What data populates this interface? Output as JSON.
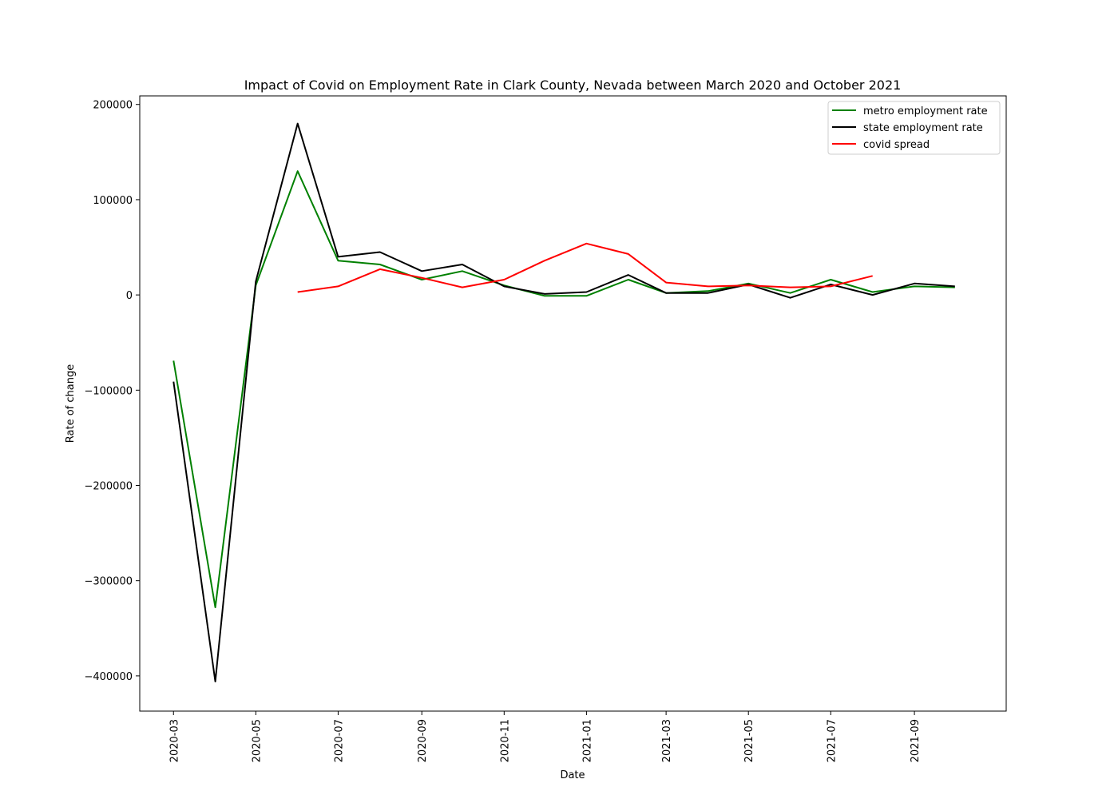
{
  "chart_data": {
    "type": "line",
    "title": "Impact of Covid on Employment Rate in Clark County, Nevada between March 2020 and October 2021",
    "xlabel": "Date",
    "ylabel": "Rate of change",
    "ylim": [
      -437000,
      209000
    ],
    "xlim": [
      "2020-02-05",
      "2021-11-08"
    ],
    "x_ticks": [
      "2020-03",
      "2020-05",
      "2020-07",
      "2020-09",
      "2020-11",
      "2021-01",
      "2021-03",
      "2021-05",
      "2021-07",
      "2021-09"
    ],
    "y_ticks": [
      {
        "value": 200000,
        "label": "200000"
      },
      {
        "value": 100000,
        "label": "100000"
      },
      {
        "value": 0,
        "label": "0"
      },
      {
        "value": -100000,
        "label": "−100000"
      },
      {
        "value": -200000,
        "label": "−200000"
      },
      {
        "value": -300000,
        "label": "−300000"
      },
      {
        "value": -400000,
        "label": "−400000"
      }
    ],
    "grid": false,
    "legend_position": "top-right",
    "series": [
      {
        "name": "metro employment rate",
        "color": "#008000",
        "x": [
          "2020-03-01",
          "2020-04-01",
          "2020-05-01",
          "2020-06-01",
          "2020-07-01",
          "2020-08-01",
          "2020-09-01",
          "2020-10-01",
          "2020-11-01",
          "2020-12-01",
          "2021-01-01",
          "2021-02-01",
          "2021-03-01",
          "2021-04-01",
          "2021-05-01",
          "2021-06-01",
          "2021-07-01",
          "2021-08-01",
          "2021-09-01",
          "2021-10-01"
        ],
        "y": [
          -69000,
          -328000,
          10000,
          130000,
          36000,
          32000,
          16000,
          25000,
          10000,
          -1000,
          -1000,
          16000,
          2000,
          4000,
          12000,
          2000,
          16000,
          3000,
          9000,
          8000
        ]
      },
      {
        "name": "state employment rate",
        "color": "#000000",
        "x": [
          "2020-03-01",
          "2020-04-01",
          "2020-05-01",
          "2020-06-01",
          "2020-07-01",
          "2020-08-01",
          "2020-09-01",
          "2020-10-01",
          "2020-11-01",
          "2020-12-01",
          "2021-01-01",
          "2021-02-01",
          "2021-03-01",
          "2021-04-01",
          "2021-05-01",
          "2021-06-01",
          "2021-07-01",
          "2021-08-01",
          "2021-09-01",
          "2021-10-01"
        ],
        "y": [
          -91000,
          -406000,
          14000,
          180000,
          40000,
          45000,
          25000,
          32000,
          9000,
          1000,
          3000,
          21000,
          2000,
          2000,
          11000,
          -3000,
          11000,
          0,
          12000,
          9000
        ]
      },
      {
        "name": "covid spread",
        "color": "#ff0000",
        "x": [
          "2020-06-01",
          "2020-07-01",
          "2020-08-01",
          "2020-09-01",
          "2020-10-01",
          "2020-11-01",
          "2020-12-01",
          "2021-01-01",
          "2021-02-01",
          "2021-03-01",
          "2021-04-01",
          "2021-05-01",
          "2021-06-01",
          "2021-07-01",
          "2021-08-01"
        ],
        "y": [
          3000,
          9000,
          27000,
          18000,
          8000,
          16000,
          36000,
          54000,
          43000,
          13000,
          9000,
          10000,
          8000,
          9000,
          20000
        ]
      }
    ]
  }
}
